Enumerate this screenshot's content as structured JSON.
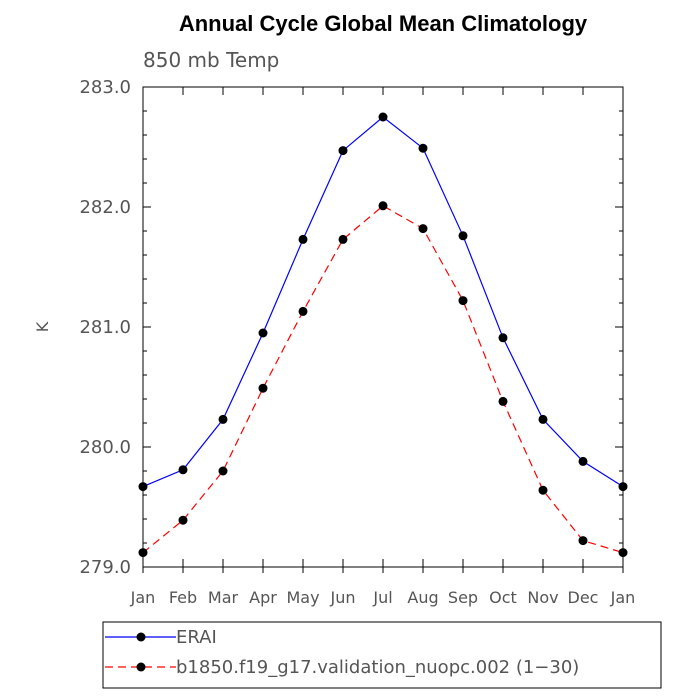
{
  "chart_data": {
    "type": "line",
    "title": "Annual Cycle Global Mean Climatology",
    "subtitle": "850 mb Temp",
    "ylabel": "K",
    "xlabel": "",
    "categories": [
      "Jan",
      "Feb",
      "Mar",
      "Apr",
      "May",
      "Jun",
      "Jul",
      "Aug",
      "Sep",
      "Oct",
      "Nov",
      "Dec",
      "Jan"
    ],
    "ylim": [
      279.0,
      283.0
    ],
    "yticks": [
      279.0,
      280.0,
      281.0,
      282.0,
      283.0
    ],
    "ytick_labels": [
      "279.0",
      "280.0",
      "281.0",
      "282.0",
      "283.0"
    ],
    "grid": false,
    "legend_placement": "bottom",
    "series": [
      {
        "name": "ERAI",
        "color": "#0000ff",
        "line_style": "solid",
        "marker": "filled-circle",
        "values": [
          279.67,
          279.81,
          280.23,
          280.95,
          281.73,
          282.47,
          282.75,
          282.49,
          281.76,
          280.91,
          280.23,
          279.88,
          279.67
        ]
      },
      {
        "name": "b1850.f19_g17.validation_nuopc.002 (1−30)",
        "color": "#ff0000",
        "line_style": "dashed",
        "marker": "filled-circle",
        "values": [
          279.12,
          279.39,
          279.8,
          280.49,
          281.13,
          281.73,
          282.01,
          281.82,
          281.22,
          280.38,
          279.64,
          279.22,
          279.12
        ]
      }
    ]
  }
}
